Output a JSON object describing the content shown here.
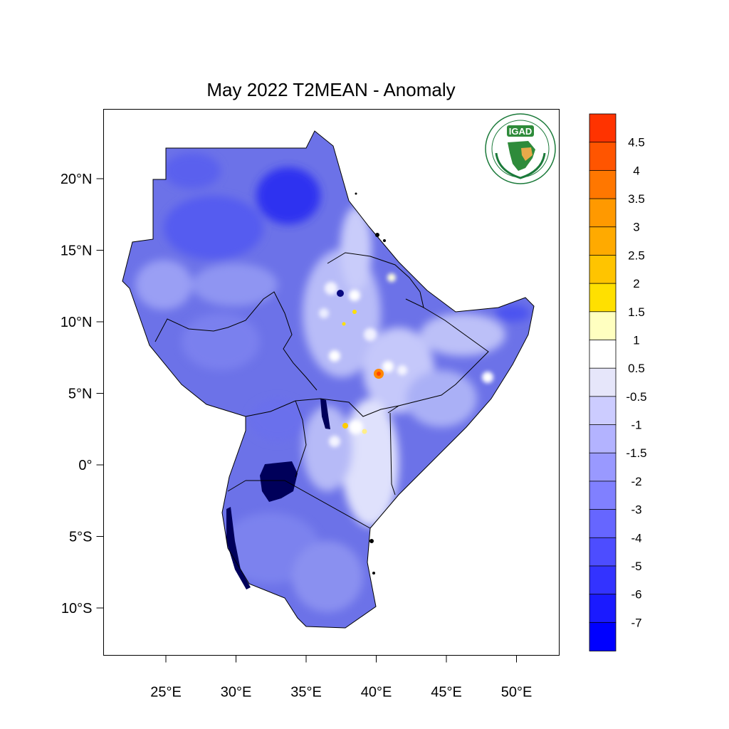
{
  "title": "May 2022 T2MEAN - Anomaly",
  "logo": {
    "text": "IGAD",
    "ring_text": "INTERGOVERNMENTAL AUTHORITY ON DEVELOPMENT · AUTORITE INTERGOUVERNEMENTALE POUR LE DEVELOPPEMENT"
  },
  "axes": {
    "lat_ticks": [
      {
        "value": 20,
        "label": "20°N"
      },
      {
        "value": 15,
        "label": "15°N"
      },
      {
        "value": 10,
        "label": "10°N"
      },
      {
        "value": 5,
        "label": "5°N"
      },
      {
        "value": 0,
        "label": "0°"
      },
      {
        "value": -5,
        "label": "5°S"
      },
      {
        "value": -10,
        "label": "10°S"
      }
    ],
    "lon_ticks": [
      {
        "value": 25,
        "label": "25°E"
      },
      {
        "value": 30,
        "label": "30°E"
      },
      {
        "value": 35,
        "label": "35°E"
      },
      {
        "value": 40,
        "label": "40°E"
      },
      {
        "value": 45,
        "label": "45°E"
      },
      {
        "value": 50,
        "label": "50°E"
      }
    ]
  },
  "colorbar": {
    "labels": [
      "4.5",
      "4",
      "3.5",
      "3",
      "2.5",
      "2",
      "1.5",
      "1",
      "0.5",
      "-0.5",
      "-1",
      "-1.5",
      "-2",
      "-3",
      "-4",
      "-5",
      "-6",
      "-7"
    ],
    "colors": [
      "#ff3300",
      "#ff5500",
      "#ff7700",
      "#ff9900",
      "#ffaa00",
      "#ffc400",
      "#ffe000",
      "#ffffc0",
      "#ffffff",
      "#e6e6fa",
      "#ccccff",
      "#b3b3ff",
      "#9999ff",
      "#8080ff",
      "#6666ff",
      "#4d4dff",
      "#3333ff",
      "#1a1aff",
      "#0000ff"
    ]
  },
  "colors": {
    "base_fill": "#6c72e8",
    "deep_blue": "#3a40ee",
    "warm_spot": "#ff8800",
    "lake": "#00005a",
    "border": "#000000"
  }
}
